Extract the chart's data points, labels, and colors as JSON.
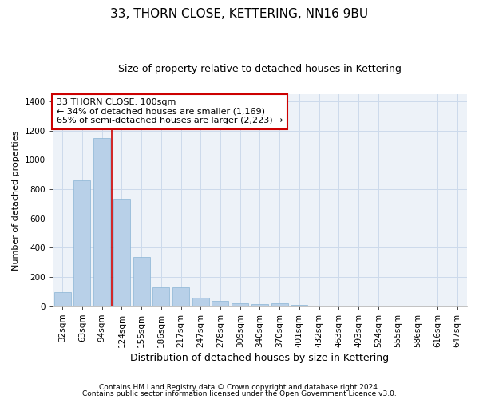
{
  "title": "33, THORN CLOSE, KETTERING, NN16 9BU",
  "subtitle": "Size of property relative to detached houses in Kettering",
  "xlabel": "Distribution of detached houses by size in Kettering",
  "ylabel": "Number of detached properties",
  "categories": [
    "32sqm",
    "63sqm",
    "94sqm",
    "124sqm",
    "155sqm",
    "186sqm",
    "217sqm",
    "247sqm",
    "278sqm",
    "309sqm",
    "340sqm",
    "370sqm",
    "401sqm",
    "432sqm",
    "463sqm",
    "493sqm",
    "524sqm",
    "555sqm",
    "586sqm",
    "616sqm",
    "647sqm"
  ],
  "values": [
    100,
    860,
    1150,
    730,
    340,
    130,
    130,
    60,
    35,
    20,
    15,
    20,
    10,
    0,
    0,
    0,
    0,
    0,
    0,
    0,
    0
  ],
  "bar_color": "#b8d0e8",
  "bar_edge_color": "#8ab4d4",
  "grid_color": "#ccdaeb",
  "background_color": "#edf2f8",
  "vline_x": 2.5,
  "vline_color": "#cc0000",
  "annotation_text": "33 THORN CLOSE: 100sqm\n← 34% of detached houses are smaller (1,169)\n65% of semi-detached houses are larger (2,223) →",
  "annotation_box_color": "#cc0000",
  "footnote1": "Contains HM Land Registry data © Crown copyright and database right 2024.",
  "footnote2": "Contains public sector information licensed under the Open Government Licence v3.0.",
  "ylim": [
    0,
    1450
  ],
  "yticks": [
    0,
    200,
    400,
    600,
    800,
    1000,
    1200,
    1400
  ],
  "title_fontsize": 11,
  "subtitle_fontsize": 9,
  "ylabel_fontsize": 8,
  "xlabel_fontsize": 9,
  "tick_fontsize": 7.5,
  "footnote_fontsize": 6.5,
  "figsize": [
    6.0,
    5.0
  ],
  "dpi": 100
}
